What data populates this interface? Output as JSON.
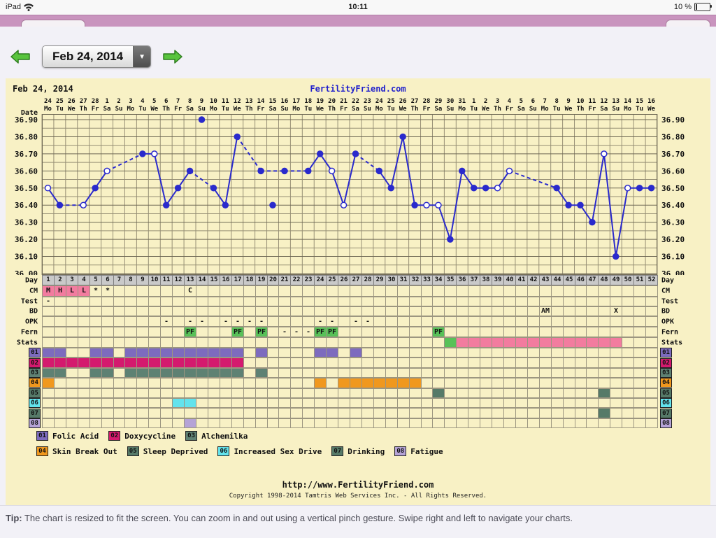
{
  "status_bar": {
    "device": "iPad",
    "time": "10:11",
    "battery_pct": "10 %"
  },
  "toolbar": {
    "date_label": "Feb 24, 2014",
    "dropdown_icon": "▼"
  },
  "colors": {
    "chart_bg": "#F8F1C5",
    "grid": "#968F75",
    "grid_major": "#6E6854",
    "line_blue": "#2A2ACC",
    "brand_blue": "#2222CC",
    "day_row_bg": "#C9C9C9",
    "cm_pink": "#F27C9F",
    "pf_green": "#58C158",
    "stats_green": "#58C158",
    "stats_pink": "#F27C9F"
  },
  "chart": {
    "title_date": "Feb 24, 2014",
    "brand": "FertilityFriend.com",
    "footer_url": "http://www.FertilityFriend.com",
    "footer_copyright": "Copyright 1998-2014 Tamtris Web Services Inc. - All Rights Reserved."
  },
  "chart_data": {
    "type": "line",
    "title": "Feb 24, 2014",
    "date_axis_label": "Date",
    "day_axis_label": "Day",
    "ylim": [
      36.0,
      36.9
    ],
    "ytick_step": 0.1,
    "x_dates": [
      "24",
      "25",
      "26",
      "27",
      "28",
      "1",
      "2",
      "3",
      "4",
      "5",
      "6",
      "7",
      "8",
      "9",
      "10",
      "11",
      "12",
      "13",
      "14",
      "15",
      "16",
      "17",
      "18",
      "19",
      "20",
      "21",
      "22",
      "23",
      "24",
      "25",
      "26",
      "27",
      "28",
      "29",
      "30",
      "31",
      "1",
      "2",
      "3",
      "4",
      "5",
      "6",
      "7",
      "8",
      "9",
      "10",
      "11",
      "12",
      "13",
      "14",
      "15",
      "16"
    ],
    "x_dows": [
      "Mo",
      "Tu",
      "We",
      "Th",
      "Fr",
      "Sa",
      "Su",
      "Mo",
      "Tu",
      "We",
      "Th",
      "Fr",
      "Sa",
      "Su",
      "Mo",
      "Tu",
      "We",
      "Th",
      "Fr",
      "Sa",
      "Su",
      "Mo",
      "Tu",
      "We",
      "Th",
      "Fr",
      "Sa",
      "Su",
      "Mo",
      "Tu",
      "We",
      "Th",
      "Fr",
      "Sa",
      "Su",
      "Mo",
      "Tu",
      "We",
      "Th",
      "Fr",
      "Sa",
      "Su",
      "Mo",
      "Tu",
      "We",
      "Th",
      "Fr",
      "Sa",
      "Su",
      "Mo",
      "Tu",
      "We"
    ],
    "days": [
      1,
      2,
      3,
      4,
      5,
      6,
      7,
      8,
      9,
      10,
      11,
      12,
      13,
      14,
      15,
      16,
      17,
      18,
      19,
      20,
      21,
      22,
      23,
      24,
      25,
      26,
      27,
      28,
      29,
      30,
      31,
      32,
      33,
      34,
      35,
      36,
      37,
      38,
      39,
      40,
      41,
      42,
      43,
      44,
      45,
      46,
      47,
      48,
      49,
      50,
      51,
      52
    ],
    "temps": [
      36.5,
      36.4,
      null,
      36.4,
      36.5,
      36.6,
      null,
      null,
      36.7,
      36.7,
      36.4,
      36.5,
      36.6,
      36.9,
      36.5,
      36.4,
      36.8,
      null,
      36.6,
      36.4,
      36.6,
      null,
      36.6,
      36.7,
      36.6,
      36.4,
      36.7,
      null,
      36.6,
      36.5,
      36.8,
      36.4,
      36.4,
      36.4,
      36.2,
      36.6,
      36.5,
      36.5,
      36.5,
      36.6,
      null,
      null,
      null,
      36.5,
      36.4,
      36.4,
      36.3,
      36.7,
      36.1,
      36.5,
      36.5,
      36.5
    ],
    "open_circle_days": [
      1,
      4,
      6,
      10,
      25,
      26,
      33,
      34,
      39,
      40,
      48,
      50
    ],
    "excluded_days": [
      14,
      20
    ]
  },
  "tracking_rows": {
    "day_label": "Day",
    "cm": {
      "label": "CM",
      "cells": [
        {
          "day": 1,
          "text": "M",
          "bg": "cm_pink"
        },
        {
          "day": 2,
          "text": "H",
          "bg": "cm_pink"
        },
        {
          "day": 3,
          "text": "L",
          "bg": "cm_pink"
        },
        {
          "day": 4,
          "text": "L",
          "bg": "cm_pink"
        },
        {
          "day": 5,
          "text": "*"
        },
        {
          "day": 6,
          "text": "*"
        },
        {
          "day": 13,
          "text": "C"
        }
      ]
    },
    "test": {
      "label": "Test",
      "cells": [
        {
          "day": 1,
          "text": "-"
        }
      ]
    },
    "bd": {
      "label": "BD",
      "cells": [
        {
          "day": 43,
          "text": "AM"
        },
        {
          "day": 49,
          "text": "X"
        }
      ]
    },
    "opk": {
      "label": "OPK",
      "cells": [
        {
          "day": 11,
          "text": "-"
        },
        {
          "day": 13,
          "text": "-"
        },
        {
          "day": 14,
          "text": "-"
        },
        {
          "day": 16,
          "text": "-"
        },
        {
          "day": 17,
          "text": "-"
        },
        {
          "day": 18,
          "text": "-"
        },
        {
          "day": 19,
          "text": "-"
        },
        {
          "day": 24,
          "text": "-"
        },
        {
          "day": 25,
          "text": "-"
        },
        {
          "day": 27,
          "text": "-"
        },
        {
          "day": 28,
          "text": "-"
        }
      ]
    },
    "fern": {
      "label": "Fern",
      "cells": [
        {
          "day": 13,
          "text": "PF",
          "bg": "pf_green"
        },
        {
          "day": 17,
          "text": "PF",
          "bg": "pf_green"
        },
        {
          "day": 19,
          "text": "PF",
          "bg": "pf_green"
        },
        {
          "day": 21,
          "text": "-"
        },
        {
          "day": 22,
          "text": "-"
        },
        {
          "day": 23,
          "text": "-"
        },
        {
          "day": 24,
          "text": "PF",
          "bg": "pf_green"
        },
        {
          "day": 25,
          "text": "PF",
          "bg": "pf_green"
        },
        {
          "day": 34,
          "text": "PF",
          "bg": "pf_green"
        }
      ]
    },
    "stats": {
      "label": "Stats",
      "cells": [
        {
          "day": 35,
          "bg": "stats_green"
        },
        {
          "day": 36,
          "bg": "stats_pink"
        },
        {
          "day": 37,
          "bg": "stats_pink"
        },
        {
          "day": 38,
          "bg": "stats_pink"
        },
        {
          "day": 39,
          "bg": "stats_pink"
        },
        {
          "day": 40,
          "bg": "stats_pink"
        },
        {
          "day": 41,
          "bg": "stats_pink"
        },
        {
          "day": 42,
          "bg": "stats_pink"
        },
        {
          "day": 43,
          "bg": "stats_pink"
        },
        {
          "day": 44,
          "bg": "stats_pink"
        },
        {
          "day": 45,
          "bg": "stats_pink"
        },
        {
          "day": 46,
          "bg": "stats_pink"
        },
        {
          "day": 47,
          "bg": "stats_pink"
        },
        {
          "day": 48,
          "bg": "stats_pink"
        },
        {
          "day": 49,
          "bg": "stats_pink"
        }
      ]
    }
  },
  "meds": [
    {
      "id": "01",
      "name": "Folic Acid",
      "color": "#7D6BBE",
      "days": [
        1,
        2,
        5,
        6,
        8,
        9,
        10,
        11,
        12,
        13,
        14,
        15,
        16,
        17,
        19,
        24,
        25,
        27
      ]
    },
    {
      "id": "02",
      "name": "Doxycycline",
      "color": "#D41A6E",
      "days": [
        1,
        2,
        3,
        4,
        5,
        6,
        7,
        8,
        9,
        10,
        11,
        12,
        13,
        14,
        15,
        16,
        17
      ]
    },
    {
      "id": "03",
      "name": "Alchemilka",
      "color": "#5E8173",
      "days": [
        1,
        2,
        5,
        6,
        8,
        9,
        10,
        11,
        12,
        13,
        14,
        15,
        16,
        17,
        19
      ]
    },
    {
      "id": "04",
      "name": "Skin Break Out",
      "color": "#F0981E",
      "days": [
        1,
        24,
        26,
        27,
        28,
        29,
        30,
        31,
        32
      ]
    },
    {
      "id": "05",
      "name": "Sleep Deprived",
      "color": "#567A68",
      "days": [
        34,
        48
      ]
    },
    {
      "id": "06",
      "name": "Increased Sex Drive",
      "color": "#63E3EC",
      "days": [
        12,
        13
      ]
    },
    {
      "id": "07",
      "name": "Drinking",
      "color": "#567A68",
      "days": [
        48
      ]
    },
    {
      "id": "08",
      "name": "Fatigue",
      "color": "#B5A3D6",
      "days": [
        13
      ]
    }
  ],
  "tip": {
    "prefix": "Tip:",
    "text": "The chart is resized to fit the screen. You can zoom in and out using a vertical pinch gesture. Swipe right and left to navigate your charts."
  }
}
